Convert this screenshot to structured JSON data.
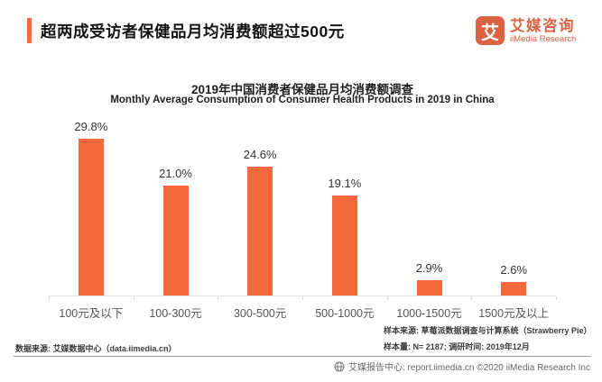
{
  "header": {
    "title": "超两成受访者保健品月均消费额超过500元",
    "logo": {
      "glyph": "艾",
      "brand_cn": "艾媒咨询",
      "brand_en": "iiMedia Research",
      "brand_color": "#DB6242"
    }
  },
  "chart_data": {
    "type": "bar",
    "title": "2019年中国消费者保健品月均消费额调查",
    "subtitle": "Monthly Average Consumption of Consumer Health Products in 2019 in China",
    "categories": [
      "100元及以下",
      "100-300元",
      "300-500元",
      "500-1000元",
      "1000-1500元",
      "1500元及以上"
    ],
    "values": [
      29.8,
      21.0,
      24.6,
      19.1,
      2.9,
      2.6
    ],
    "value_labels": [
      "29.8%",
      "21.0%",
      "24.6%",
      "19.1%",
      "2.9%",
      "2.6%"
    ],
    "bar_color": "#F6693C",
    "xlabel": "",
    "ylabel": "",
    "ylim": [
      0,
      34
    ],
    "grid": false,
    "legend_position": "none"
  },
  "footnotes": {
    "data_source": "数据来源: 艾媒数据中心（data.iimedia.cn）",
    "sample_source": "样本来源: 草莓派数据调查与计算系统（Strawberry Pie）",
    "sample_size": "样本量: N= 2187; 调研时间: 2019年12月"
  },
  "footer": {
    "text": "艾媒报告中心: report.iimedia.cn ©2020  iiMedia Research Inc"
  }
}
